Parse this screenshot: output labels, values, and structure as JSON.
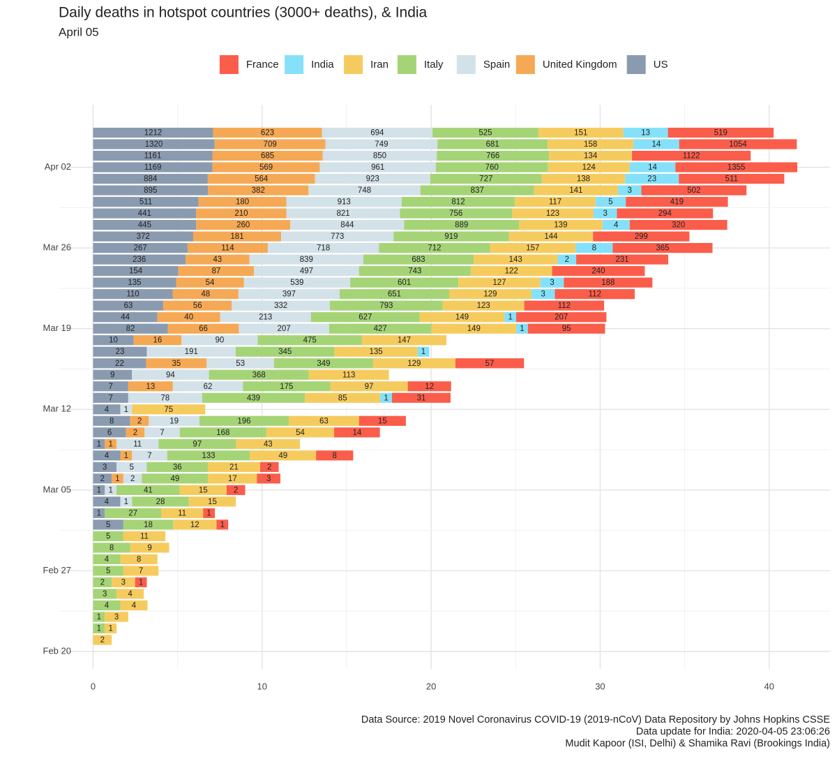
{
  "chart_data": {
    "type": "bar",
    "orientation": "horizontal",
    "stacked": true,
    "x_scale": "log1p",
    "title": "Daily deaths in hotspot countries (3000+ deaths), & India",
    "subtitle": "April 05",
    "footer": [
      "Data Source: 2019 Novel Coronavirus COVID-19 (2019-nCoV) Data Repository by Johns Hopkins CSSE",
      "Data update for India: 2020-04-05 23:06:26",
      "Mudit Kapoor (ISI, Delhi) & Shamika Ravi (Brookings India)"
    ],
    "xlim": [
      -2,
      43.6
    ],
    "xticks": [
      0,
      10,
      20,
      30,
      40
    ],
    "grid": true,
    "legend": "top",
    "categories": [
      "Feb 20",
      null,
      null,
      null,
      null,
      null,
      null,
      "Feb 27",
      null,
      null,
      null,
      null,
      null,
      null,
      "Mar 05",
      null,
      null,
      null,
      null,
      null,
      null,
      "Mar 12",
      null,
      null,
      null,
      null,
      null,
      null,
      "Mar 19",
      null,
      null,
      null,
      null,
      null,
      null,
      "Mar 26",
      null,
      null,
      null,
      null,
      null,
      null,
      "Apr 02",
      null,
      null,
      null
    ],
    "series": [
      {
        "name": "France",
        "color": "#fb5d4b",
        "values": [
          null,
          null,
          null,
          null,
          null,
          null,
          1,
          null,
          null,
          null,
          null,
          1,
          1,
          null,
          2,
          3,
          2,
          8,
          null,
          14,
          15,
          null,
          31,
          12,
          null,
          57,
          null,
          null,
          95,
          207,
          112,
          112,
          188,
          240,
          231,
          365,
          299,
          320,
          294,
          419,
          502,
          511,
          1355,
          1122,
          1054,
          519
        ]
      },
      {
        "name": "India",
        "color": "#84e1f9",
        "values": [
          null,
          null,
          null,
          null,
          null,
          null,
          null,
          null,
          null,
          null,
          null,
          null,
          null,
          null,
          null,
          null,
          null,
          null,
          null,
          null,
          null,
          null,
          1,
          null,
          null,
          null,
          1,
          null,
          1,
          1,
          null,
          3,
          3,
          null,
          2,
          8,
          null,
          4,
          3,
          5,
          3,
          23,
          14,
          null,
          14,
          13
        ]
      },
      {
        "name": "Iran",
        "color": "#f6cb5e",
        "values": [
          null,
          2,
          1,
          3,
          4,
          4,
          3,
          7,
          8,
          9,
          11,
          12,
          11,
          15,
          15,
          17,
          21,
          49,
          43,
          54,
          63,
          75,
          85,
          97,
          113,
          129,
          135,
          147,
          149,
          149,
          123,
          129,
          127,
          122,
          143,
          157,
          144,
          139,
          123,
          117,
          141,
          138,
          124,
          134,
          158,
          151
        ]
      },
      {
        "name": "Italy",
        "color": "#a5d476",
        "values": [
          null,
          null,
          1,
          1,
          4,
          3,
          2,
          5,
          4,
          8,
          5,
          18,
          27,
          28,
          41,
          49,
          36,
          133,
          97,
          168,
          196,
          null,
          439,
          175,
          368,
          349,
          345,
          475,
          427,
          627,
          793,
          651,
          601,
          743,
          683,
          712,
          919,
          889,
          756,
          812,
          837,
          727,
          760,
          766,
          681,
          525
        ]
      },
      {
        "name": "Spain",
        "color": "#d3e1e8",
        "values": [
          null,
          null,
          null,
          null,
          null,
          null,
          null,
          null,
          null,
          null,
          null,
          null,
          null,
          1,
          1,
          2,
          5,
          7,
          11,
          7,
          19,
          1,
          78,
          62,
          94,
          53,
          191,
          90,
          207,
          213,
          332,
          397,
          539,
          497,
          839,
          718,
          773,
          844,
          821,
          913,
          748,
          923,
          961,
          850,
          749,
          694
        ]
      },
      {
        "name": "United Kingdom",
        "color": "#f5a955",
        "values": [
          null,
          null,
          null,
          null,
          null,
          null,
          null,
          null,
          null,
          null,
          null,
          null,
          null,
          null,
          null,
          1,
          null,
          1,
          1,
          2,
          2,
          null,
          null,
          13,
          null,
          35,
          null,
          16,
          66,
          40,
          56,
          48,
          54,
          87,
          43,
          114,
          181,
          260,
          210,
          180,
          382,
          564,
          569,
          685,
          709,
          623
        ]
      },
      {
        "name": "US",
        "color": "#8a9bb0",
        "values": [
          null,
          null,
          null,
          null,
          null,
          null,
          null,
          null,
          null,
          null,
          null,
          5,
          1,
          4,
          1,
          2,
          3,
          4,
          1,
          6,
          8,
          4,
          7,
          7,
          9,
          22,
          23,
          10,
          82,
          44,
          63,
          110,
          135,
          154,
          236,
          267,
          372,
          445,
          441,
          511,
          895,
          884,
          1169,
          1161,
          1320,
          1212
        ]
      }
    ]
  }
}
